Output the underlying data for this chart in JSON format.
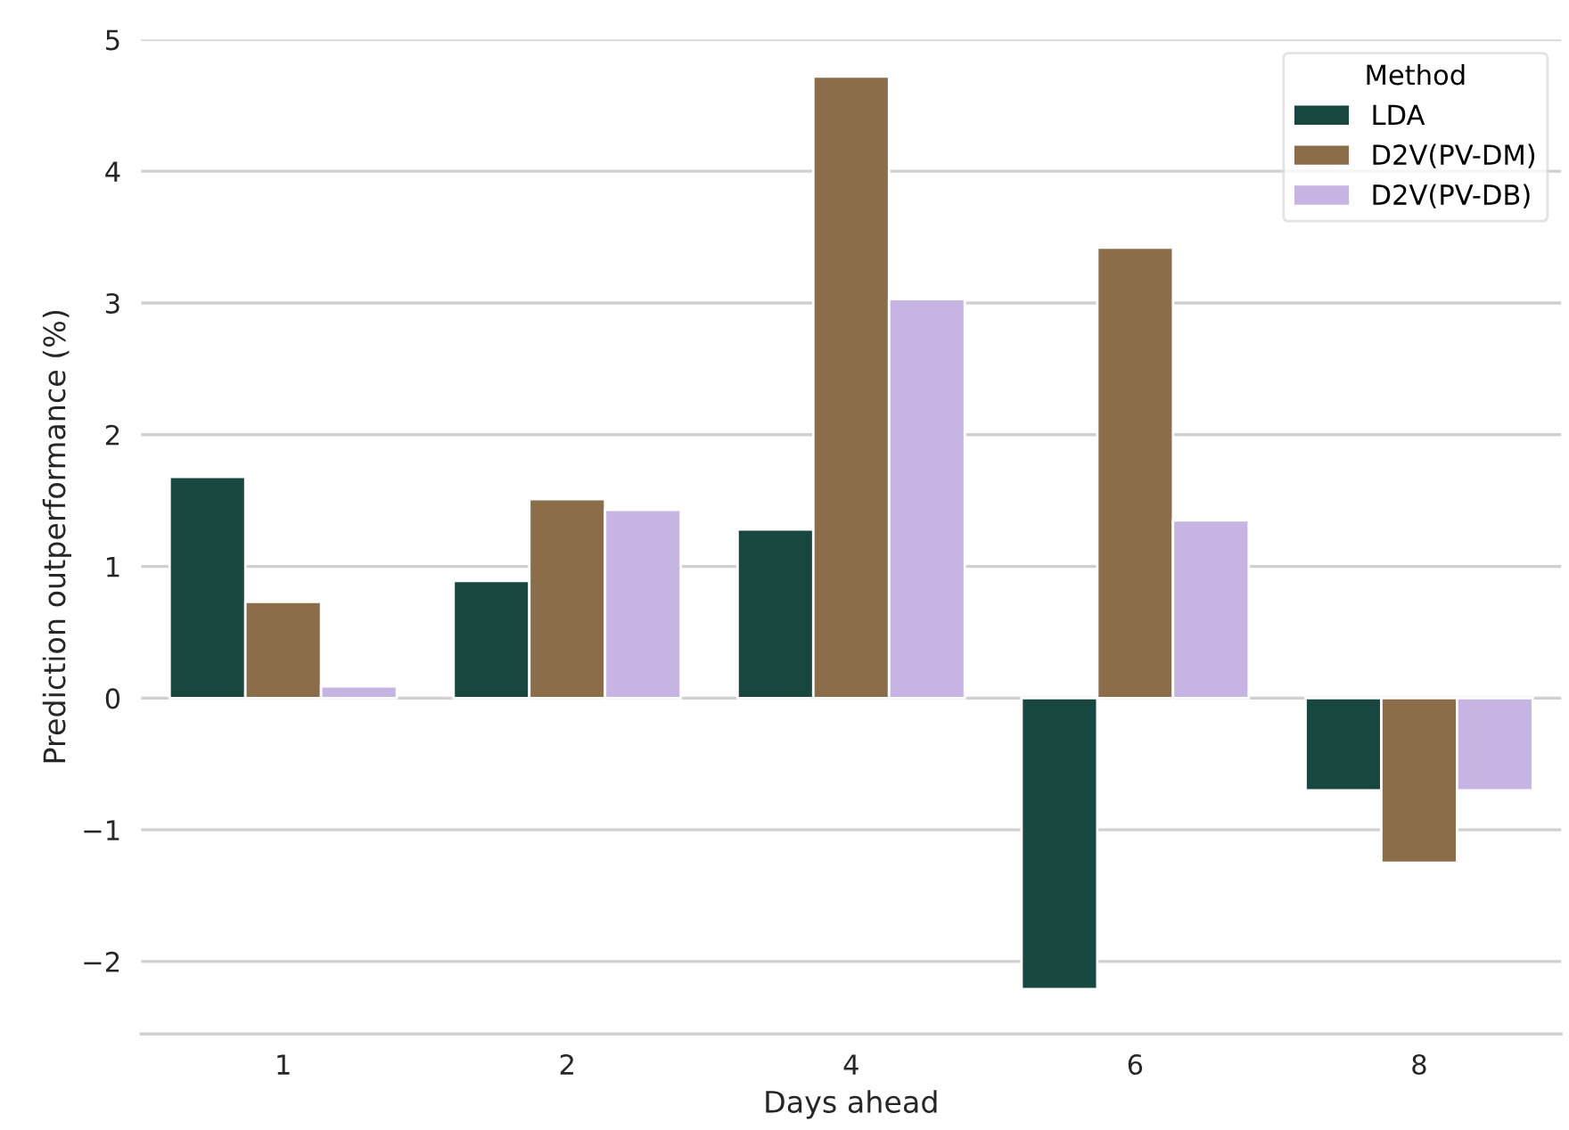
{
  "chart_data": {
    "type": "bar",
    "xlabel": "Days ahead",
    "ylabel": "Prediction outperformance (%)",
    "legend_title": "Method",
    "categories": [
      "1",
      "2",
      "4",
      "6",
      "8"
    ],
    "series": [
      {
        "name": "LDA",
        "color": "#17473f",
        "values": [
          1.68,
          0.89,
          1.28,
          -2.21,
          -0.7
        ]
      },
      {
        "name": "D2V(PV-DM)",
        "color": "#8c6d4a",
        "values": [
          0.73,
          1.51,
          4.72,
          3.42,
          -1.25
        ]
      },
      {
        "name": "D2V(PV-DB)",
        "color": "#c6b5e3",
        "values": [
          0.09,
          1.43,
          3.03,
          1.35,
          -0.7
        ]
      }
    ],
    "ylim": [
      -2.55,
      5
    ],
    "yticks": [
      {
        "value": -2,
        "label": "−2"
      },
      {
        "value": -1,
        "label": "−1"
      },
      0,
      1,
      2,
      3,
      4,
      5
    ],
    "grid": "y",
    "legend": "top right"
  }
}
